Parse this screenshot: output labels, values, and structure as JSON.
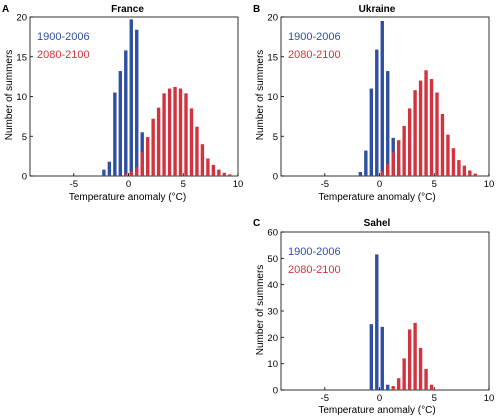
{
  "colors": {
    "early": "#2f4fa0",
    "late": "#d1343e"
  },
  "chart_data": [
    {
      "type": "bar",
      "panel": "A",
      "title": "France",
      "xlabel": "Temperature anomaly (°C)",
      "ylabel": "Number of summers",
      "xlim": [
        -9,
        10
      ],
      "ylim": [
        0,
        20
      ],
      "xticks": [
        -5,
        0,
        5,
        10
      ],
      "yticks": [
        0,
        5,
        10,
        15,
        20
      ],
      "legend_position": "top-left",
      "series": [
        {
          "name": "1900-2006",
          "color": "#2f4fa0",
          "x": [
            -2.25,
            -1.75,
            -1.25,
            -0.75,
            -0.25,
            0.25,
            0.75,
            1.25,
            1.75
          ],
          "values": [
            0.8,
            1.8,
            10.5,
            13.2,
            15.8,
            19.7,
            18.4,
            5.5,
            1.9
          ]
        },
        {
          "name": "2080-2100",
          "color": "#d1343e",
          "x": [
            -0.25,
            0.25,
            0.75,
            1.25,
            1.75,
            2.25,
            2.75,
            3.25,
            3.75,
            4.25,
            4.75,
            5.25,
            5.75,
            6.25,
            6.75,
            7.25,
            7.75,
            8.25,
            8.75,
            9.25
          ],
          "values": [
            0.3,
            0.6,
            1.1,
            3.0,
            4.9,
            7.2,
            8.6,
            10.4,
            11.0,
            11.2,
            11.0,
            10.4,
            8.5,
            6.2,
            4.0,
            2.2,
            1.4,
            0.8,
            0.4,
            0.2
          ]
        }
      ]
    },
    {
      "type": "bar",
      "panel": "B",
      "title": "Ukraine",
      "xlabel": "Temperature anomaly (°C)",
      "ylabel": "Number of summers",
      "xlim": [
        -9,
        10
      ],
      "ylim": [
        0,
        20
      ],
      "xticks": [
        -5,
        0,
        5,
        10
      ],
      "yticks": [
        0,
        5,
        10,
        15,
        20
      ],
      "legend_position": "top-left",
      "series": [
        {
          "name": "1900-2006",
          "color": "#2f4fa0",
          "x": [
            -1.75,
            -1.25,
            -0.75,
            -0.25,
            0.25,
            0.75,
            1.25,
            1.75
          ],
          "values": [
            0.5,
            3.2,
            11.0,
            15.9,
            19.5,
            13.2,
            4.8,
            1.2
          ]
        },
        {
          "name": "2080-2100",
          "color": "#d1343e",
          "x": [
            0.25,
            0.75,
            1.25,
            1.75,
            2.25,
            2.75,
            3.25,
            3.75,
            4.25,
            4.75,
            5.25,
            5.75,
            6.25,
            6.75,
            7.25,
            7.75,
            8.25,
            8.75
          ],
          "values": [
            0.6,
            1.5,
            3.0,
            4.5,
            6.3,
            8.5,
            10.8,
            12.0,
            13.3,
            12.2,
            10.5,
            7.8,
            5.2,
            3.5,
            2.0,
            1.3,
            0.7,
            0.3
          ]
        }
      ]
    },
    {
      "type": "bar",
      "panel": "C",
      "title": "Sahel",
      "xlabel": "Temperature anomaly (°C)",
      "ylabel": "Number of summers",
      "xlim": [
        -9,
        10
      ],
      "ylim": [
        0,
        60
      ],
      "xticks": [
        -5,
        0,
        5,
        10
      ],
      "yticks": [
        0,
        10,
        20,
        30,
        40,
        50,
        60
      ],
      "legend_position": "top-left",
      "series": [
        {
          "name": "1900-2006",
          "color": "#2f4fa0",
          "x": [
            -0.75,
            -0.25,
            0.25,
            0.75
          ],
          "values": [
            25.0,
            51.5,
            24.0,
            2.0
          ]
        },
        {
          "name": "2080-2100",
          "color": "#d1343e",
          "x": [
            1.25,
            1.75,
            2.25,
            2.75,
            3.25,
            3.75,
            4.25,
            4.75
          ],
          "values": [
            1.5,
            4.5,
            12.0,
            23.0,
            25.5,
            16.0,
            8.0,
            2.0
          ]
        }
      ]
    }
  ]
}
